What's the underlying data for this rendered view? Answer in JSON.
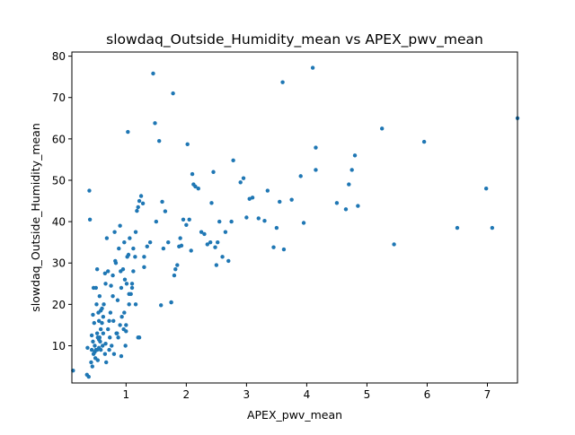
{
  "chart_data": {
    "type": "scatter",
    "title": "slowdaq_Outside_Humidity_mean vs APEX_pwv_mean",
    "xlabel": "APEX_pwv_mean",
    "ylabel": "slowdaq_Outside_Humidity_mean",
    "xlim": [
      0.1,
      7.5
    ],
    "ylim": [
      1,
      81
    ],
    "xticks": [
      1,
      2,
      3,
      4,
      5,
      6,
      7
    ],
    "yticks": [
      10,
      20,
      30,
      40,
      50,
      60,
      70,
      80
    ],
    "xtick_labels": [
      "1",
      "2",
      "3",
      "4",
      "5",
      "6",
      "7"
    ],
    "ytick_labels": [
      "10",
      "20",
      "30",
      "40",
      "50",
      "60",
      "70",
      "80"
    ],
    "grid": false,
    "legend": "none",
    "marker_color": "#1f77b4",
    "series": [
      {
        "x": [
          0.12,
          0.36,
          0.39,
          0.4,
          0.43,
          0.43,
          0.45,
          0.45,
          0.46,
          0.46,
          0.47,
          0.48,
          0.49,
          0.5,
          0.5,
          0.51,
          0.52,
          0.52,
          0.53,
          0.53,
          0.54,
          0.55,
          0.55,
          0.56,
          0.56,
          0.57,
          0.58,
          0.58,
          0.6,
          0.61,
          0.62,
          0.62,
          0.63,
          0.65,
          0.66,
          0.67,
          0.68,
          0.7,
          0.7,
          0.72,
          0.73,
          0.75,
          0.76,
          0.78,
          0.79,
          0.8,
          0.81,
          0.83,
          0.84,
          0.86,
          0.87,
          0.88,
          0.9,
          0.91,
          0.92,
          0.93,
          0.95,
          0.96,
          0.97,
          0.99,
          1.0,
          1.0,
          1.01,
          1.02,
          1.03,
          1.05,
          1.06,
          1.08,
          1.1,
          1.12,
          1.15,
          1.16,
          1.18,
          1.2,
          1.22,
          1.25,
          1.28,
          1.3,
          1.35,
          1.4,
          1.45,
          1.5,
          1.55,
          1.6,
          1.65,
          1.7,
          1.75,
          1.78,
          1.8,
          1.82,
          1.85,
          1.88,
          1.9,
          1.95,
          2.0,
          2.02,
          2.05,
          2.1,
          2.12,
          2.2,
          2.25,
          2.3,
          2.35,
          2.4,
          2.45,
          2.5,
          2.55,
          2.6,
          2.65,
          2.7,
          2.78,
          2.95,
          3.0,
          3.1,
          3.2,
          3.35,
          3.45,
          3.55,
          3.6,
          3.75,
          3.9,
          3.95,
          4.1,
          4.15,
          4.5,
          4.65,
          4.75,
          4.8,
          5.25,
          5.45,
          5.95,
          6.5,
          6.98,
          7.08,
          7.5,
          0.35,
          0.42,
          0.48,
          0.55,
          0.6,
          0.66,
          0.72,
          0.78,
          0.85,
          0.92,
          0.98,
          1.04,
          1.1,
          1.16,
          1.22,
          0.38,
          0.44,
          0.52,
          0.58,
          0.65,
          0.74,
          0.82,
          0.9,
          0.97,
          1.05,
          1.12,
          1.2,
          1.3,
          1.48,
          1.58,
          1.62,
          1.75,
          1.92,
          2.08,
          2.15,
          2.42,
          2.48,
          2.52,
          2.75,
          2.9,
          3.05,
          3.3,
          3.5,
          3.62,
          4.15,
          4.7,
          4.85
        ],
        "y": [
          4,
          9.5,
          47.5,
          40.5,
          9,
          12.5,
          17.5,
          11,
          8,
          24,
          15.5,
          10,
          7,
          9,
          24,
          20,
          13,
          28.5,
          12,
          6.5,
          18,
          9.5,
          16,
          12,
          22,
          11,
          14,
          9,
          15.5,
          10,
          13,
          17,
          20,
          8,
          25,
          6,
          36,
          14,
          28,
          9,
          12,
          24.5,
          10,
          27,
          16,
          8,
          37.5,
          30,
          13,
          21,
          12,
          33.5,
          39,
          28,
          24,
          17,
          28.5,
          14,
          18,
          10,
          13.5,
          15,
          25,
          31.5,
          61.7,
          20,
          36,
          22.5,
          25,
          28,
          31.5,
          37.5,
          42.6,
          43.5,
          45,
          46.2,
          44.4,
          29,
          34,
          35,
          75.8,
          40,
          59.5,
          44.8,
          42.5,
          35,
          20.5,
          71,
          27,
          28.5,
          29.5,
          34,
          36,
          40.5,
          39.2,
          58.7,
          40.5,
          51.5,
          49,
          48,
          37.5,
          37,
          34.5,
          35,
          52,
          29.5,
          40,
          31.5,
          37.5,
          30.5,
          54.8,
          50.5,
          41,
          45.8,
          40.8,
          47.5,
          33.8,
          44.8,
          73.7,
          45.3,
          51,
          39.7,
          77.2,
          52.5,
          44.5,
          43,
          52.5,
          56,
          62.5,
          34.5,
          59.3,
          38.5,
          48,
          38.5,
          65,
          3,
          6,
          8.5,
          11.5,
          19,
          10.5,
          16,
          22,
          13,
          7.5,
          26,
          32,
          24,
          20,
          12,
          2.5,
          5,
          9,
          18.5,
          27.5,
          18,
          30.5,
          15,
          35,
          22.5,
          33.5,
          12,
          31.5,
          63.8,
          19.8,
          33.5,
          20.5,
          34.2,
          33,
          48.5,
          44.5,
          33.8,
          35,
          40,
          49.5,
          45.5,
          40.2,
          38.5,
          33.3,
          57.9,
          49,
          43.8
        ]
      }
    ]
  }
}
